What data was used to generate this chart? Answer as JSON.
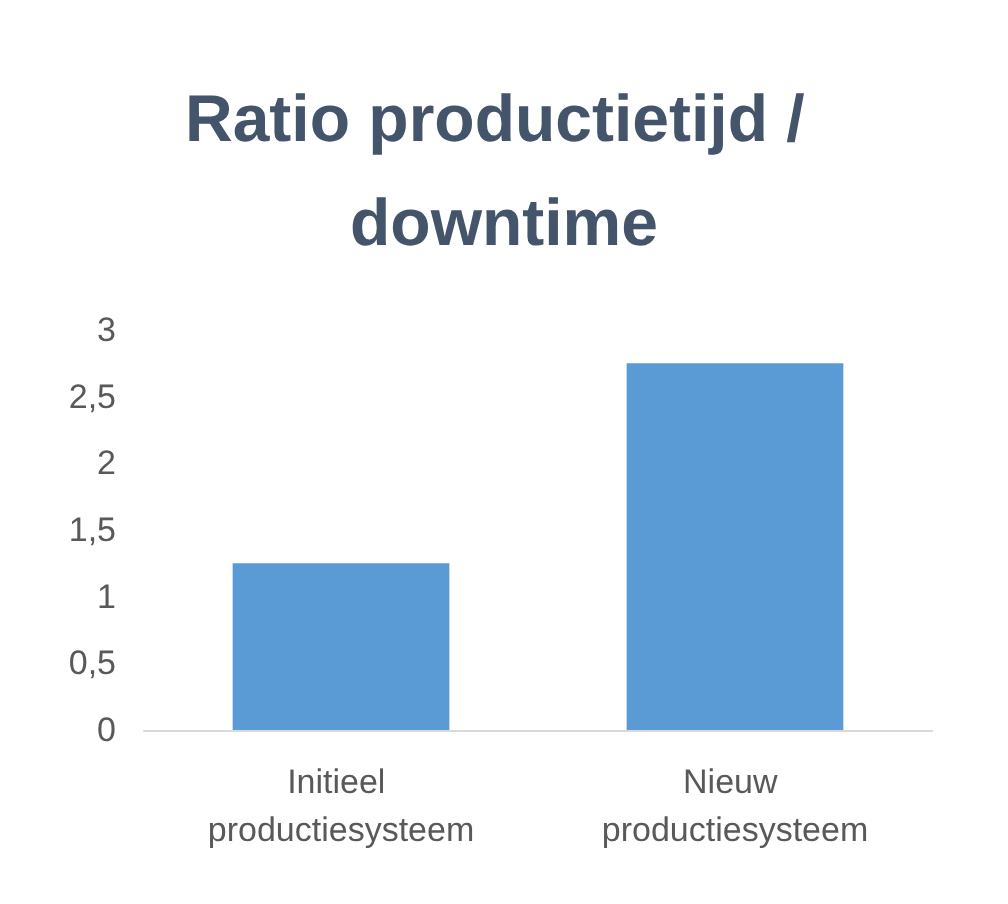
{
  "chart_data": {
    "type": "bar",
    "title": "Ratio productietijd / downtime",
    "categories": [
      "Initieel productiesysteem",
      "Nieuw productiesysteem"
    ],
    "values": [
      1.25,
      2.75
    ],
    "color": "#5b9bd5",
    "ylim": [
      0,
      3
    ],
    "yticks": [
      0,
      {
        "value": 0.5,
        "label": "0,5"
      },
      1,
      {
        "value": 1.5,
        "label": "1,5"
      },
      2,
      {
        "value": 2.5,
        "label": "2,5"
      },
      3
    ],
    "grid": false
  }
}
